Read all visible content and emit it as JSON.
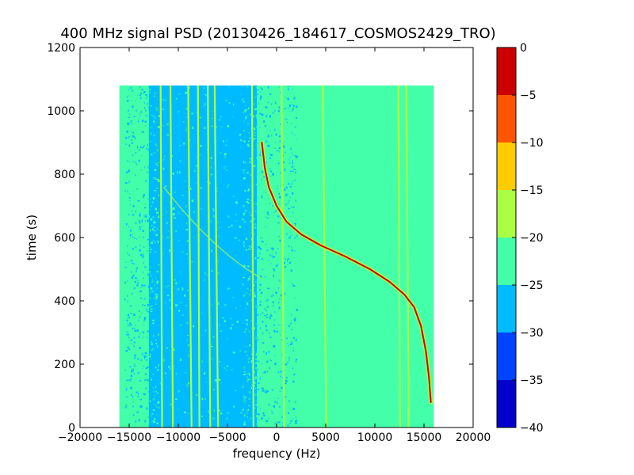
{
  "chart_data": {
    "type": "heatmap",
    "title": "400 MHz signal PSD (20130426_184617_COSMOS2429_TRO)",
    "xlabel": "frequency (Hz)",
    "ylabel": "time (s)",
    "xlim": [
      -20000,
      20000
    ],
    "ylim": [
      0,
      1200
    ],
    "x_ticks": [
      -20000,
      -15000,
      -10000,
      -5000,
      0,
      5000,
      10000,
      15000,
      20000
    ],
    "x_tick_labels": [
      "−20000",
      "−15000",
      "−10000",
      "−5000",
      "0",
      "5000",
      "10000",
      "15000",
      "20000"
    ],
    "y_ticks": [
      0,
      200,
      400,
      600,
      800,
      1000,
      1200
    ],
    "y_tick_labels": [
      "0",
      "200",
      "400",
      "600",
      "800",
      "1000",
      "1200"
    ],
    "data_extent": {
      "x": [
        -16000,
        16000
      ],
      "y": [
        0,
        1080
      ]
    },
    "background_level_range": [
      -25,
      -20
    ],
    "noisy_band": {
      "x": [
        -13000,
        -2000
      ],
      "level_range": [
        -30,
        -25
      ]
    },
    "doppler_trace": {
      "level_range": [
        -5,
        0
      ],
      "points": [
        [
          15700,
          80
        ],
        [
          15500,
          160
        ],
        [
          15200,
          240
        ],
        [
          14700,
          320
        ],
        [
          14000,
          380
        ],
        [
          13000,
          420
        ],
        [
          11500,
          460
        ],
        [
          9500,
          500
        ],
        [
          7000,
          540
        ],
        [
          4500,
          575
        ],
        [
          2500,
          610
        ],
        [
          1000,
          650
        ],
        [
          0,
          700
        ],
        [
          -800,
          760
        ],
        [
          -1200,
          820
        ],
        [
          -1500,
          900
        ]
      ]
    },
    "vertical_lines_level_range": [
      -20,
      -15
    ],
    "vertical_lines_x": [
      -11800,
      -10800,
      -9000,
      -8000,
      -7000,
      -6300,
      -2500,
      500,
      4700,
      12400,
      13200
    ],
    "colorbar": {
      "boundaries": [
        -40,
        -35,
        -30,
        -25,
        -20,
        -15,
        -10,
        -5,
        0
      ],
      "tick_labels": [
        "−40",
        "−35",
        "−30",
        "−25",
        "−20",
        "−15",
        "−10",
        "−5",
        "0"
      ],
      "colors": [
        "#0000cc",
        "#0044ff",
        "#00bbff",
        "#44ffaa",
        "#aaff44",
        "#ffcc00",
        "#ff5500",
        "#cc0000"
      ]
    }
  }
}
